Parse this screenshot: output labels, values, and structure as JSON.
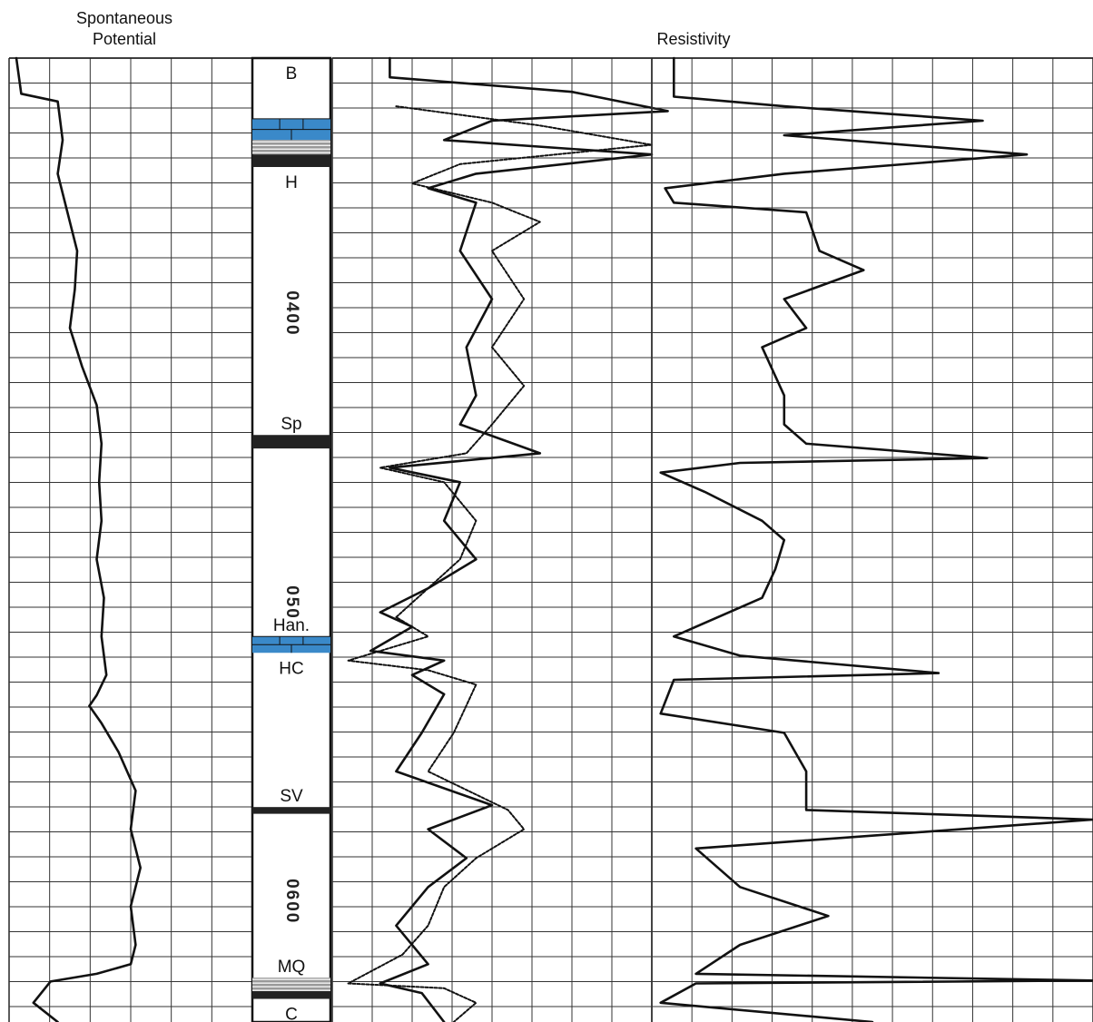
{
  "chart_data": {
    "type": "line",
    "title": "",
    "tracks": [
      {
        "name": "sp-track",
        "header": [
          "Spontaneous",
          "Potential"
        ],
        "series": [
          {
            "name": "",
            "points": [
              [
                0.03,
                0
              ],
              [
                0.05,
                0.037
              ],
              [
                0.2,
                0.045
              ],
              [
                0.22,
                0.085
              ],
              [
                0.2,
                0.12
              ],
              [
                0.24,
                0.16
              ],
              [
                0.28,
                0.2
              ],
              [
                0.27,
                0.24
              ],
              [
                0.25,
                0.28
              ],
              [
                0.3,
                0.32
              ],
              [
                0.36,
                0.36
              ],
              [
                0.38,
                0.4
              ],
              [
                0.37,
                0.44
              ],
              [
                0.38,
                0.48
              ],
              [
                0.36,
                0.52
              ],
              [
                0.39,
                0.56
              ],
              [
                0.38,
                0.6
              ],
              [
                0.4,
                0.64
              ],
              [
                0.36,
                0.661
              ],
              [
                0.33,
                0.672
              ],
              [
                0.38,
                0.69
              ],
              [
                0.45,
                0.72
              ],
              [
                0.52,
                0.76
              ],
              [
                0.5,
                0.8
              ],
              [
                0.54,
                0.84
              ],
              [
                0.5,
                0.88
              ],
              [
                0.52,
                0.92
              ],
              [
                0.5,
                0.94
              ],
              [
                0.36,
                0.95
              ],
              [
                0.17,
                0.958
              ],
              [
                0.1,
                0.98
              ],
              [
                0.2,
                1.0
              ]
            ]
          }
        ]
      },
      {
        "name": "resistivity-track-1",
        "header": "Resistivity",
        "series": [
          {
            "name": "",
            "points": [
              [
                0.18,
                0
              ],
              [
                0.18,
                0.02
              ],
              [
                0.75,
                0.035
              ],
              [
                1.05,
                0.055
              ],
              [
                0.5,
                0.065
              ],
              [
                0.35,
                0.085
              ],
              [
                1.0,
                0.1
              ],
              [
                0.45,
                0.12
              ],
              [
                0.3,
                0.135
              ],
              [
                0.45,
                0.15
              ],
              [
                0.4,
                0.2
              ],
              [
                0.5,
                0.25
              ],
              [
                0.42,
                0.3
              ],
              [
                0.45,
                0.35
              ],
              [
                0.4,
                0.38
              ],
              [
                0.65,
                0.41
              ],
              [
                0.18,
                0.425
              ],
              [
                0.4,
                0.44
              ],
              [
                0.35,
                0.48
              ],
              [
                0.45,
                0.52
              ],
              [
                0.3,
                0.55
              ],
              [
                0.15,
                0.575
              ],
              [
                0.25,
                0.59
              ],
              [
                0.12,
                0.615
              ],
              [
                0.35,
                0.625
              ],
              [
                0.25,
                0.64
              ],
              [
                0.35,
                0.66
              ],
              [
                0.28,
                0.7
              ],
              [
                0.2,
                0.74
              ],
              [
                0.5,
                0.775
              ],
              [
                0.3,
                0.8
              ],
              [
                0.42,
                0.83
              ],
              [
                0.3,
                0.86
              ],
              [
                0.2,
                0.9
              ],
              [
                0.3,
                0.94
              ],
              [
                0.15,
                0.96
              ],
              [
                0.28,
                0.97
              ],
              [
                0.35,
                1.0
              ]
            ]
          },
          {
            "name": "",
            "points": [
              [
                0.2,
                0.05
              ],
              [
                0.65,
                0.07
              ],
              [
                1.0,
                0.09
              ],
              [
                0.4,
                0.11
              ],
              [
                0.25,
                0.13
              ],
              [
                0.5,
                0.15
              ],
              [
                0.65,
                0.17
              ],
              [
                0.5,
                0.2
              ],
              [
                0.6,
                0.25
              ],
              [
                0.5,
                0.3
              ],
              [
                0.6,
                0.34
              ],
              [
                0.5,
                0.38
              ],
              [
                0.42,
                0.41
              ],
              [
                0.15,
                0.425
              ],
              [
                0.35,
                0.44
              ],
              [
                0.45,
                0.48
              ],
              [
                0.4,
                0.52
              ],
              [
                0.3,
                0.55
              ],
              [
                0.2,
                0.58
              ],
              [
                0.3,
                0.6
              ],
              [
                0.05,
                0.625
              ],
              [
                0.3,
                0.635
              ],
              [
                0.45,
                0.65
              ],
              [
                0.38,
                0.7
              ],
              [
                0.3,
                0.74
              ],
              [
                0.55,
                0.78
              ],
              [
                0.6,
                0.8
              ],
              [
                0.45,
                0.83
              ],
              [
                0.35,
                0.86
              ],
              [
                0.3,
                0.9
              ],
              [
                0.22,
                0.93
              ],
              [
                0.05,
                0.96
              ],
              [
                0.35,
                0.965
              ],
              [
                0.45,
                0.98
              ],
              [
                0.38,
                1.0
              ]
            ]
          }
        ]
      },
      {
        "name": "resistivity-track-2",
        "header": "",
        "series": [
          {
            "name": "",
            "points": [
              [
                0.05,
                0
              ],
              [
                0.05,
                0.04
              ],
              [
                0.3,
                0.05
              ],
              [
                0.75,
                0.065
              ],
              [
                0.3,
                0.08
              ],
              [
                0.85,
                0.1
              ],
              [
                0.3,
                0.12
              ],
              [
                0.03,
                0.135
              ],
              [
                0.05,
                0.15
              ],
              [
                0.35,
                0.16
              ],
              [
                0.38,
                0.2
              ],
              [
                0.48,
                0.22
              ],
              [
                0.3,
                0.25
              ],
              [
                0.35,
                0.28
              ],
              [
                0.25,
                0.3
              ],
              [
                0.3,
                0.35
              ],
              [
                0.3,
                0.38
              ],
              [
                0.35,
                0.4
              ],
              [
                0.76,
                0.415
              ],
              [
                0.2,
                0.42
              ],
              [
                0.02,
                0.43
              ],
              [
                0.12,
                0.45
              ],
              [
                0.25,
                0.48
              ],
              [
                0.3,
                0.5
              ],
              [
                0.28,
                0.53
              ],
              [
                0.25,
                0.56
              ],
              [
                0.05,
                0.6
              ],
              [
                0.2,
                0.62
              ],
              [
                0.65,
                0.638
              ],
              [
                0.05,
                0.645
              ],
              [
                0.02,
                0.68
              ],
              [
                0.3,
                0.7
              ],
              [
                0.35,
                0.74
              ],
              [
                0.35,
                0.78
              ],
              [
                1.0,
                0.79
              ],
              [
                0.1,
                0.82
              ],
              [
                0.2,
                0.86
              ],
              [
                0.4,
                0.89
              ],
              [
                0.2,
                0.92
              ],
              [
                0.1,
                0.95
              ],
              [
                1.0,
                0.957
              ],
              [
                0.1,
                0.96
              ],
              [
                0.02,
                0.98
              ],
              [
                0.5,
                1.0
              ]
            ]
          }
        ]
      }
    ],
    "lithology_column": {
      "units": [
        {
          "label": "B",
          "start": 0.0,
          "end": 0.063,
          "fill": "#ffffff"
        },
        {
          "label": "",
          "start": 0.063,
          "end": 0.085,
          "fill": "#3a89c9",
          "pattern": "limestone"
        },
        {
          "label": "",
          "start": 0.085,
          "end": 0.1,
          "fill": "#999999",
          "pattern": "shale"
        },
        {
          "label": "",
          "start": 0.1,
          "end": 0.113,
          "fill": "#222222"
        },
        {
          "label": "H",
          "start": 0.113,
          "end": 0.391,
          "fill": "#ffffff"
        },
        {
          "label": "",
          "start": 0.391,
          "end": 0.405,
          "fill": "#222222"
        },
        {
          "label": "",
          "start": 0.405,
          "end": 0.6,
          "fill": "#ffffff"
        },
        {
          "label": "",
          "start": 0.6,
          "end": 0.617,
          "fill": "#3a89c9",
          "pattern": "limestone"
        },
        {
          "label": "HC",
          "start": 0.617,
          "end": 0.777,
          "fill": "#ffffff"
        },
        {
          "label": "",
          "start": 0.777,
          "end": 0.784,
          "fill": "#222222"
        },
        {
          "label": "",
          "start": 0.784,
          "end": 0.954,
          "fill": "#ffffff"
        },
        {
          "label": "",
          "start": 0.954,
          "end": 0.968,
          "fill": "#999999",
          "pattern": "shale"
        },
        {
          "label": "",
          "start": 0.968,
          "end": 0.976,
          "fill": "#222222"
        },
        {
          "label": "C",
          "start": 0.976,
          "end": 1.0,
          "fill": "#ffffff"
        }
      ],
      "boundary_labels": [
        {
          "label": "Sp",
          "depth": 0.391
        },
        {
          "label": "Han.",
          "depth": 0.6
        },
        {
          "label": "SV",
          "depth": 0.777
        },
        {
          "label": "MQ",
          "depth": 0.954
        }
      ],
      "depth_markers": [
        {
          "label": "0400",
          "depth": 0.265
        },
        {
          "label": "050",
          "depth": 0.565
        },
        {
          "label": "0600",
          "depth": 0.875
        }
      ]
    },
    "grid": true
  }
}
